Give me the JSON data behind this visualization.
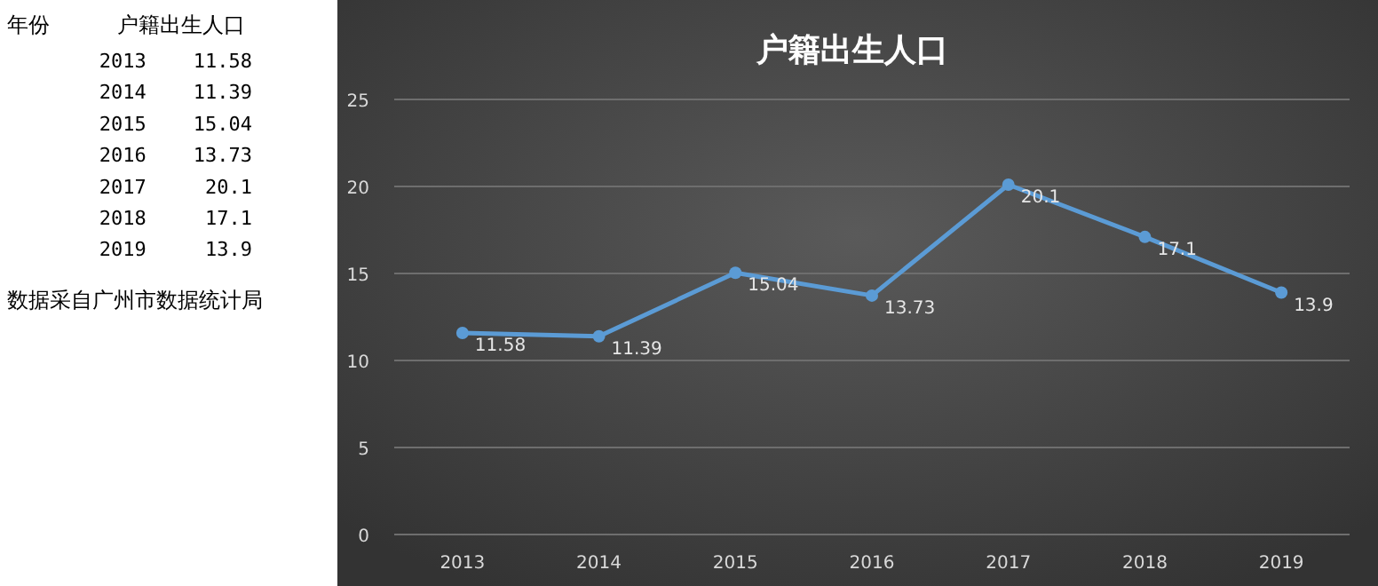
{
  "chart_data": [
    {
      "type": "other",
      "annotations": [
        "年份",
        "户籍出生人口",
        "2013    11.58",
        "2014    11.39",
        "2015    15.04",
        "2016    13.73",
        "2017     20.1",
        "2018     17.1",
        "2019     13.9",
        "数据采自广州市数据统计局"
      ]
    },
    {
      "type": "line",
      "title": "户籍出生人口",
      "categories": [
        "2013",
        "2014",
        "2015",
        "2016",
        "2017",
        "2018",
        "2019"
      ],
      "series": [
        {
          "color": "#5b9bd5",
          "values": [
            11.58,
            11.39,
            15.04,
            13.73,
            20.1,
            17.1,
            13.9
          ]
        }
      ],
      "ylim": [
        0,
        25
      ],
      "yticks": [
        0,
        5,
        10,
        15,
        20,
        25
      ],
      "grid": "y",
      "marker": "circle",
      "data_labels": true
    }
  ]
}
